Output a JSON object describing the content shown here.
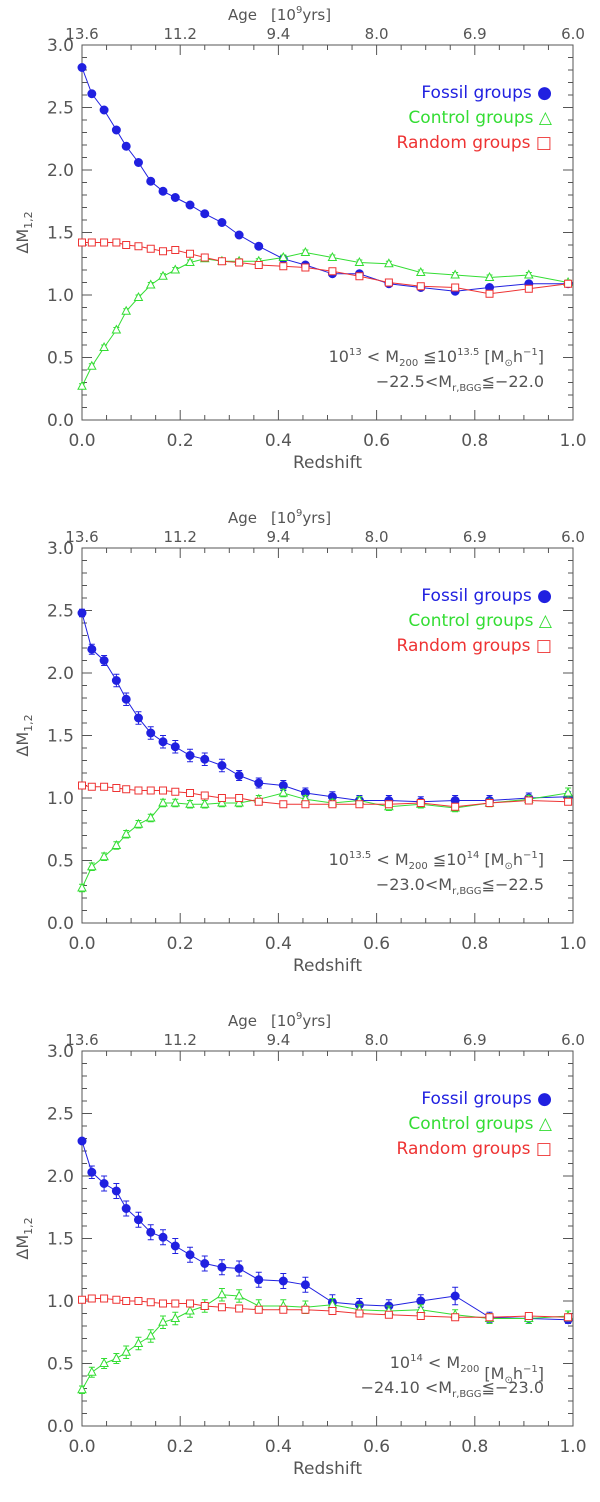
{
  "chart_data": [
    {
      "type": "line",
      "xlabel": "Redshift",
      "ylabel": "ΔM",
      "ylabel_sub": "1,2",
      "xlim": [
        0,
        1
      ],
      "ylim": [
        0,
        3
      ],
      "x_ticks": [
        "0.0",
        "0.2",
        "0.4",
        "0.6",
        "0.8",
        "1.0"
      ],
      "y_ticks": [
        "0.0",
        "0.5",
        "1.0",
        "1.5",
        "2.0",
        "2.5",
        "3.0"
      ],
      "top_axis": {
        "title": "Age",
        "unit_pre": "[10",
        "unit_sup": "9",
        "unit_post": "yrs]",
        "tick_labels": [
          "13.6",
          "11.2",
          "9.4",
          "8.0",
          "6.9",
          "6.0"
        ]
      },
      "legend": [
        {
          "label": "Fossil groups",
          "marker": "●",
          "color": "#2020e0"
        },
        {
          "label": "Control groups",
          "marker": "△",
          "color": "#33dd33"
        },
        {
          "label": "Random groups",
          "marker": "□",
          "color": "#ee3333"
        }
      ],
      "annotation": {
        "line1": {
          "pre": "10",
          "sup1": "13",
          "mid": " < M",
          "sub": "200",
          "rel": " ≦10",
          "sup2": "13.5",
          "post": " [M",
          "sun": "⊙",
          "h": "h",
          "hsup": "−1",
          "end": "]"
        },
        "line2": {
          "pre": "−22.5<M",
          "sub": "r,BGG",
          "post": "≦−22.0"
        }
      },
      "series": [
        {
          "name": "Fossil groups",
          "color": "#2020e0",
          "marker": "circle",
          "x": [
            0.0,
            0.02,
            0.045,
            0.07,
            0.09,
            0.115,
            0.14,
            0.165,
            0.19,
            0.22,
            0.25,
            0.285,
            0.32,
            0.36,
            0.41,
            0.455,
            0.51,
            0.565,
            0.625,
            0.69,
            0.76,
            0.83,
            0.91,
            0.99
          ],
          "values": [
            2.82,
            2.61,
            2.48,
            2.32,
            2.19,
            2.06,
            1.91,
            1.83,
            1.78,
            1.72,
            1.65,
            1.58,
            1.48,
            1.39,
            1.29,
            1.24,
            1.17,
            1.17,
            1.09,
            1.06,
            1.03,
            1.06,
            1.09,
            1.09
          ],
          "errors": [
            0.02,
            0.02,
            0.02,
            0.02,
            0.02,
            0.02,
            0.02,
            0.02,
            0.02,
            0.02,
            0.02,
            0.02,
            0.02,
            0.02,
            0.02,
            0.02,
            0.02,
            0.02,
            0.02,
            0.02,
            0.02,
            0.02,
            0.02,
            0.02
          ]
        },
        {
          "name": "Control groups",
          "color": "#33dd33",
          "marker": "triangle",
          "x": [
            0.0,
            0.02,
            0.045,
            0.07,
            0.09,
            0.115,
            0.14,
            0.165,
            0.19,
            0.22,
            0.25,
            0.285,
            0.32,
            0.36,
            0.41,
            0.455,
            0.51,
            0.565,
            0.625,
            0.69,
            0.76,
            0.83,
            0.91,
            0.99
          ],
          "values": [
            0.27,
            0.43,
            0.58,
            0.72,
            0.87,
            0.98,
            1.08,
            1.15,
            1.2,
            1.26,
            1.29,
            1.27,
            1.27,
            1.27,
            1.3,
            1.34,
            1.3,
            1.26,
            1.25,
            1.18,
            1.16,
            1.14,
            1.16,
            1.1
          ],
          "errors": [
            0.02,
            0.02,
            0.02,
            0.02,
            0.02,
            0.02,
            0.02,
            0.02,
            0.02,
            0.02,
            0.02,
            0.02,
            0.02,
            0.02,
            0.02,
            0.02,
            0.02,
            0.02,
            0.02,
            0.02,
            0.02,
            0.02,
            0.02,
            0.02
          ]
        },
        {
          "name": "Random groups",
          "color": "#ee3333",
          "marker": "square",
          "x": [
            0.0,
            0.02,
            0.045,
            0.07,
            0.09,
            0.115,
            0.14,
            0.165,
            0.19,
            0.22,
            0.25,
            0.285,
            0.32,
            0.36,
            0.41,
            0.455,
            0.51,
            0.565,
            0.625,
            0.69,
            0.76,
            0.83,
            0.91,
            0.99
          ],
          "values": [
            1.42,
            1.42,
            1.42,
            1.42,
            1.4,
            1.39,
            1.37,
            1.35,
            1.36,
            1.33,
            1.3,
            1.27,
            1.26,
            1.24,
            1.23,
            1.22,
            1.19,
            1.15,
            1.1,
            1.07,
            1.06,
            1.01,
            1.05,
            1.09
          ],
          "errors": [
            0.01,
            0.01,
            0.01,
            0.01,
            0.01,
            0.01,
            0.01,
            0.01,
            0.01,
            0.01,
            0.01,
            0.01,
            0.01,
            0.01,
            0.01,
            0.01,
            0.01,
            0.01,
            0.01,
            0.01,
            0.01,
            0.01,
            0.01,
            0.01
          ]
        }
      ]
    },
    {
      "type": "line",
      "xlabel": "Redshift",
      "ylabel": "ΔM",
      "ylabel_sub": "1,2",
      "xlim": [
        0,
        1
      ],
      "ylim": [
        0,
        3
      ],
      "x_ticks": [
        "0.0",
        "0.2",
        "0.4",
        "0.6",
        "0.8",
        "1.0"
      ],
      "y_ticks": [
        "0.0",
        "0.5",
        "1.0",
        "1.5",
        "2.0",
        "2.5",
        "3.0"
      ],
      "top_axis": {
        "title": "Age",
        "unit_pre": "[10",
        "unit_sup": "9",
        "unit_post": "yrs]",
        "tick_labels": [
          "13.6",
          "11.2",
          "9.4",
          "8.0",
          "6.9",
          "6.0"
        ]
      },
      "legend": [
        {
          "label": "Fossil groups",
          "marker": "●",
          "color": "#2020e0"
        },
        {
          "label": "Control groups",
          "marker": "△",
          "color": "#33dd33"
        },
        {
          "label": "Random groups",
          "marker": "□",
          "color": "#ee3333"
        }
      ],
      "annotation": {
        "line1": {
          "pre": "10",
          "sup1": "13.5",
          "mid": " < M",
          "sub": "200",
          "rel": " ≦10",
          "sup2": "14",
          "post": " [M",
          "sun": "⊙",
          "h": "h",
          "hsup": "−1",
          "end": "]"
        },
        "line2": {
          "pre": "−23.0<M",
          "sub": "r,BGG",
          "post": "≦−22.5"
        }
      },
      "series": [
        {
          "name": "Fossil groups",
          "color": "#2020e0",
          "marker": "circle",
          "x": [
            0.0,
            0.02,
            0.045,
            0.07,
            0.09,
            0.115,
            0.14,
            0.165,
            0.19,
            0.22,
            0.25,
            0.285,
            0.32,
            0.36,
            0.41,
            0.455,
            0.51,
            0.565,
            0.625,
            0.69,
            0.76,
            0.83,
            0.91,
            0.99
          ],
          "values": [
            2.48,
            2.19,
            2.1,
            1.94,
            1.79,
            1.64,
            1.52,
            1.45,
            1.41,
            1.34,
            1.31,
            1.26,
            1.18,
            1.12,
            1.1,
            1.04,
            1.01,
            0.98,
            0.98,
            0.97,
            0.98,
            0.98,
            1.0,
            1.01
          ],
          "errors": [
            0.03,
            0.04,
            0.04,
            0.05,
            0.05,
            0.05,
            0.05,
            0.05,
            0.05,
            0.05,
            0.05,
            0.05,
            0.04,
            0.04,
            0.04,
            0.04,
            0.04,
            0.04,
            0.04,
            0.04,
            0.04,
            0.04,
            0.04,
            0.04
          ]
        },
        {
          "name": "Control groups",
          "color": "#33dd33",
          "marker": "triangle",
          "x": [
            0.0,
            0.02,
            0.045,
            0.07,
            0.09,
            0.115,
            0.14,
            0.165,
            0.19,
            0.22,
            0.25,
            0.285,
            0.32,
            0.36,
            0.41,
            0.455,
            0.51,
            0.565,
            0.625,
            0.69,
            0.76,
            0.83,
            0.91,
            0.99
          ],
          "values": [
            0.28,
            0.45,
            0.53,
            0.62,
            0.71,
            0.79,
            0.84,
            0.96,
            0.96,
            0.95,
            0.95,
            0.96,
            0.96,
            0.99,
            1.04,
            0.99,
            0.96,
            0.98,
            0.93,
            0.95,
            0.92,
            0.96,
            0.99,
            1.04
          ],
          "errors": [
            0.03,
            0.03,
            0.03,
            0.03,
            0.03,
            0.03,
            0.03,
            0.03,
            0.03,
            0.03,
            0.03,
            0.03,
            0.03,
            0.03,
            0.03,
            0.03,
            0.03,
            0.03,
            0.03,
            0.03,
            0.03,
            0.03,
            0.03,
            0.04
          ]
        },
        {
          "name": "Random groups",
          "color": "#ee3333",
          "marker": "square",
          "x": [
            0.0,
            0.02,
            0.045,
            0.07,
            0.09,
            0.115,
            0.14,
            0.165,
            0.19,
            0.22,
            0.25,
            0.285,
            0.32,
            0.36,
            0.41,
            0.455,
            0.51,
            0.565,
            0.625,
            0.69,
            0.76,
            0.83,
            0.91,
            0.99
          ],
          "values": [
            1.1,
            1.09,
            1.09,
            1.08,
            1.07,
            1.06,
            1.06,
            1.06,
            1.05,
            1.04,
            1.02,
            1.0,
            1.0,
            0.97,
            0.95,
            0.95,
            0.95,
            0.95,
            0.95,
            0.96,
            0.93,
            0.96,
            0.98,
            0.97
          ],
          "errors": [
            0.01,
            0.01,
            0.01,
            0.01,
            0.01,
            0.01,
            0.01,
            0.01,
            0.01,
            0.01,
            0.01,
            0.01,
            0.01,
            0.01,
            0.01,
            0.01,
            0.01,
            0.01,
            0.01,
            0.01,
            0.01,
            0.01,
            0.01,
            0.01
          ]
        }
      ]
    },
    {
      "type": "line",
      "xlabel": "Redshift",
      "ylabel": "ΔM",
      "ylabel_sub": "1,2",
      "xlim": [
        0,
        1
      ],
      "ylim": [
        0,
        3
      ],
      "x_ticks": [
        "0.0",
        "0.2",
        "0.4",
        "0.6",
        "0.8",
        "1.0"
      ],
      "y_ticks": [
        "0.0",
        "0.5",
        "1.0",
        "1.5",
        "2.0",
        "2.5",
        "3.0"
      ],
      "top_axis": {
        "title": "Age",
        "unit_pre": "[10",
        "unit_sup": "9",
        "unit_post": "yrs]",
        "tick_labels": [
          "13.6",
          "11.2",
          "9.4",
          "8.0",
          "6.9",
          "6.0"
        ]
      },
      "legend": [
        {
          "label": "Fossil groups",
          "marker": "●",
          "color": "#2020e0"
        },
        {
          "label": "Control groups",
          "marker": "△",
          "color": "#33dd33"
        },
        {
          "label": "Random groups",
          "marker": "□",
          "color": "#ee3333"
        }
      ],
      "annotation": {
        "line1": {
          "pre": "10",
          "sup1": "14",
          "mid": " < M",
          "sub": "200",
          "rel": "",
          "sup2": "",
          "post": "  [M",
          "sun": "⊙",
          "h": "h",
          "hsup": "−1",
          "end": "]"
        },
        "line2": {
          "pre": "−24.10 <M",
          "sub": "r,BGG",
          "post": "≦−23.0"
        }
      },
      "series": [
        {
          "name": "Fossil groups",
          "color": "#2020e0",
          "marker": "circle",
          "x": [
            0.0,
            0.02,
            0.045,
            0.07,
            0.09,
            0.115,
            0.14,
            0.165,
            0.19,
            0.22,
            0.25,
            0.285,
            0.32,
            0.36,
            0.41,
            0.455,
            0.51,
            0.565,
            0.625,
            0.69,
            0.76,
            0.83,
            0.91,
            0.99
          ],
          "values": [
            2.28,
            2.03,
            1.94,
            1.88,
            1.74,
            1.65,
            1.55,
            1.51,
            1.44,
            1.37,
            1.3,
            1.27,
            1.26,
            1.17,
            1.16,
            1.13,
            0.99,
            0.97,
            0.96,
            1.0,
            1.04,
            0.87,
            0.86,
            0.85
          ],
          "errors": [
            0.02,
            0.05,
            0.06,
            0.06,
            0.06,
            0.06,
            0.06,
            0.06,
            0.06,
            0.06,
            0.06,
            0.06,
            0.06,
            0.06,
            0.06,
            0.06,
            0.06,
            0.05,
            0.05,
            0.05,
            0.07,
            0.04,
            0.04,
            0.03
          ]
        },
        {
          "name": "Control groups",
          "color": "#33dd33",
          "marker": "triangle",
          "x": [
            0.0,
            0.02,
            0.045,
            0.07,
            0.09,
            0.115,
            0.14,
            0.165,
            0.19,
            0.22,
            0.25,
            0.285,
            0.32,
            0.36,
            0.41,
            0.455,
            0.51,
            0.565,
            0.625,
            0.69,
            0.76,
            0.83,
            0.91,
            0.99
          ],
          "values": [
            0.29,
            0.43,
            0.5,
            0.54,
            0.59,
            0.66,
            0.72,
            0.83,
            0.86,
            0.92,
            0.96,
            1.05,
            1.04,
            0.96,
            0.96,
            0.95,
            0.97,
            0.93,
            0.92,
            0.93,
            0.89,
            0.86,
            0.86,
            0.88
          ],
          "errors": [
            0.03,
            0.04,
            0.04,
            0.04,
            0.05,
            0.05,
            0.05,
            0.05,
            0.05,
            0.05,
            0.05,
            0.05,
            0.05,
            0.05,
            0.05,
            0.05,
            0.05,
            0.04,
            0.04,
            0.04,
            0.04,
            0.04,
            0.04,
            0.04
          ]
        },
        {
          "name": "Random groups",
          "color": "#ee3333",
          "marker": "square",
          "x": [
            0.0,
            0.02,
            0.045,
            0.07,
            0.09,
            0.115,
            0.14,
            0.165,
            0.19,
            0.22,
            0.25,
            0.285,
            0.32,
            0.36,
            0.41,
            0.455,
            0.51,
            0.565,
            0.625,
            0.69,
            0.76,
            0.83,
            0.91,
            0.99
          ],
          "values": [
            1.01,
            1.02,
            1.02,
            1.01,
            1.0,
            1.0,
            0.99,
            0.98,
            0.98,
            0.98,
            0.96,
            0.95,
            0.94,
            0.93,
            0.93,
            0.93,
            0.92,
            0.9,
            0.89,
            0.88,
            0.87,
            0.87,
            0.88,
            0.87
          ],
          "errors": [
            0.01,
            0.01,
            0.01,
            0.01,
            0.01,
            0.01,
            0.01,
            0.01,
            0.01,
            0.01,
            0.01,
            0.01,
            0.01,
            0.01,
            0.01,
            0.01,
            0.01,
            0.01,
            0.01,
            0.01,
            0.01,
            0.01,
            0.01,
            0.01
          ]
        }
      ]
    }
  ]
}
